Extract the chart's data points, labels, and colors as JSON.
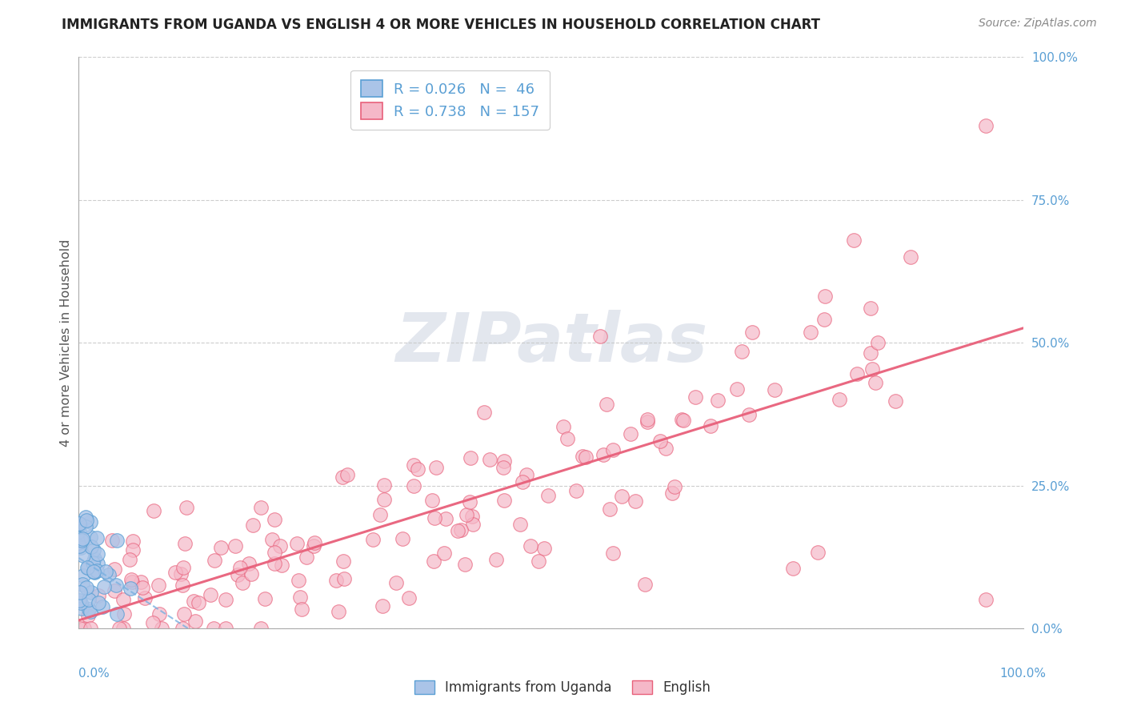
{
  "title": "IMMIGRANTS FROM UGANDA VS ENGLISH 4 OR MORE VEHICLES IN HOUSEHOLD CORRELATION CHART",
  "source": "Source: ZipAtlas.com",
  "ylabel": "4 or more Vehicles in Household",
  "yticks": [
    "0.0%",
    "25.0%",
    "50.0%",
    "75.0%",
    "100.0%"
  ],
  "ytick_vals": [
    0.0,
    0.25,
    0.5,
    0.75,
    1.0
  ],
  "xtick_left": "0.0%",
  "xtick_right": "100.0%",
  "legend_blue_r": "0.026",
  "legend_blue_n": "46",
  "legend_pink_r": "0.738",
  "legend_pink_n": "157",
  "legend_label_blue": "Immigrants from Uganda",
  "legend_label_pink": "English",
  "blue_fill": "#aac4e8",
  "pink_fill": "#f5b8c8",
  "blue_edge": "#5a9fd4",
  "pink_edge": "#e8607a",
  "blue_line": "#7ab0e0",
  "pink_line": "#e8607a",
  "axis_label_color": "#5a9fd4",
  "title_color": "#222222",
  "source_color": "#888888",
  "ylabel_color": "#555555",
  "grid_color": "#c8c8c8",
  "watermark_color": "#d8dde8"
}
